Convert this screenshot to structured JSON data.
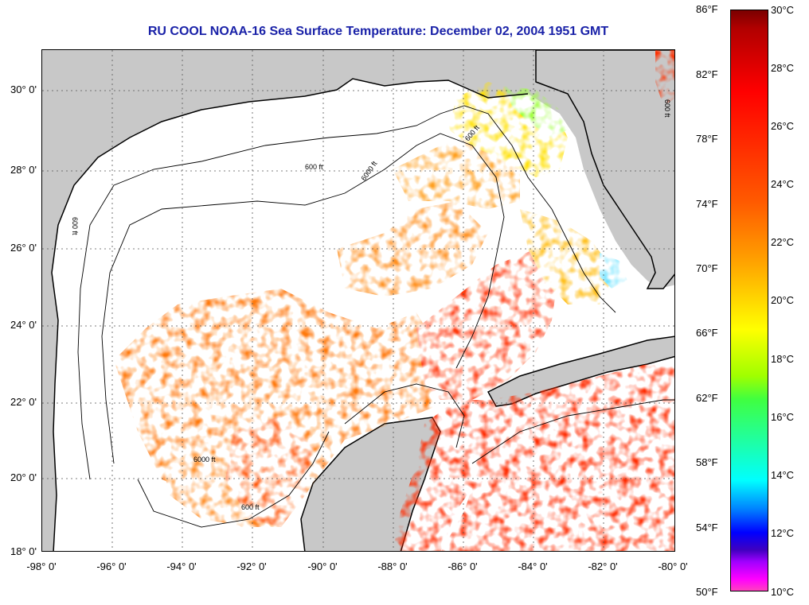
{
  "title": "RU COOL  NOAA-16  Sea Surface Temperature:  December 02, 2004 1951 GMT",
  "map": {
    "lat_labels": [
      "30° 0'",
      "28° 0'",
      "26° 0'",
      "24° 0'",
      "22° 0'",
      "20° 0'",
      "18° 0'"
    ],
    "lon_labels": [
      "-98° 0'",
      "-96° 0'",
      "-94° 0'",
      "-92° 0'",
      "-90° 0'",
      "-88° 0'",
      "-86° 0'",
      "-84° 0'",
      "-82° 0'",
      "-80° 0'"
    ],
    "contour_labels": [
      "600 ft",
      "6000 ft"
    ],
    "colors": {
      "land": "#c8c8c8",
      "cloud": "#ffffff",
      "warm": "#ff2a00",
      "mid": "#ff7a10",
      "cool": "#ffb000",
      "shelf_cool": "#ffe000",
      "shelf_cold": "#60e0ff"
    }
  },
  "colorbar": {
    "fahrenheit_ticks": [
      "86°F",
      "82°F",
      "78°F",
      "74°F",
      "70°F",
      "66°F",
      "62°F",
      "58°F",
      "54°F",
      "50°F"
    ],
    "celsius_ticks": [
      "30°C",
      "28°C",
      "26°C",
      "24°C",
      "22°C",
      "20°C",
      "18°C",
      "16°C",
      "14°C",
      "12°C",
      "10°C"
    ]
  }
}
